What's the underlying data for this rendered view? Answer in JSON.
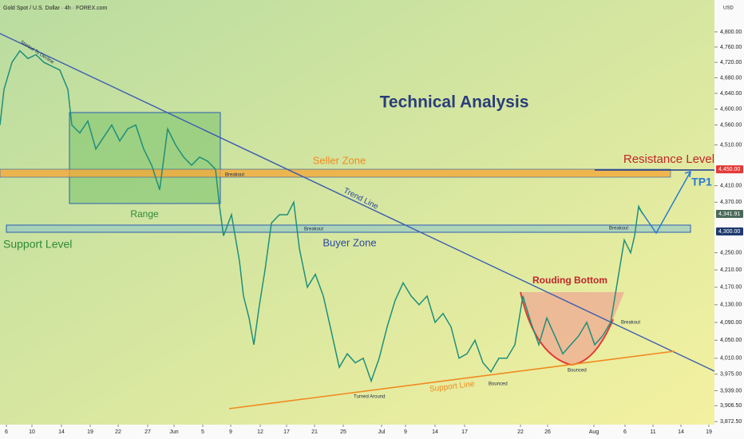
{
  "chart_data": {
    "type": "line",
    "title": "Technical Analysis",
    "subtitle": "Gold Spot / U.S. Dollar · 4h · FOREX.com",
    "currency": "USD",
    "log": true,
    "color": "#1f8f7a",
    "x": [
      0,
      1,
      3,
      5,
      7,
      9,
      11,
      13,
      15,
      17,
      18,
      20,
      22,
      24,
      26,
      28,
      30,
      32,
      34,
      36,
      38,
      40,
      42,
      44,
      46,
      48,
      50,
      52,
      54,
      55,
      56,
      58,
      60,
      61,
      62.4,
      63.6,
      65,
      66.4,
      68,
      70,
      72,
      73.6,
      75,
      77,
      79,
      81,
      83,
      85,
      87,
      89,
      91,
      93,
      95,
      97,
      99,
      101,
      103,
      105,
      107,
      109,
      111,
      113,
      115,
      117,
      119,
      121,
      123,
      125,
      127,
      129,
      131,
      133,
      135,
      137,
      139,
      141,
      143,
      145,
      147,
      149,
      151,
      153,
      155,
      156.4,
      158,
      159,
      160,
      161
    ],
    "values": [
      4560,
      4650,
      4720,
      4750,
      4730,
      4740,
      4720,
      4710,
      4700,
      4650,
      4560,
      4540,
      4570,
      4500,
      4530,
      4560,
      4520,
      4550,
      4560,
      4500,
      4460,
      4400,
      4550,
      4510,
      4480,
      4460,
      4480,
      4470,
      4450,
      4360,
      4290,
      4340,
      4230,
      4150,
      4100,
      4040,
      4130,
      4210,
      4320,
      4340,
      4340,
      4370,
      4260,
      4170,
      4200,
      4150,
      4070,
      3990,
      4020,
      4000,
      4010,
      3960,
      4010,
      4080,
      4140,
      4180,
      4150,
      4130,
      4150,
      4090,
      4110,
      4080,
      4010,
      4020,
      4050,
      4000,
      3980,
      4010,
      4010,
      4040,
      4150,
      4090,
      4040,
      4100,
      4060,
      4020,
      4040,
      4060,
      4090,
      4040,
      4060,
      4090,
      4200,
      4280,
      4250,
      4290,
      4360,
      4341.91
    ],
    "xlim": [
      0,
      179
    ],
    "xticks": [
      {
        "value": 1.6,
        "label": "6"
      },
      {
        "value": 8,
        "label": "10"
      },
      {
        "value": 15.4,
        "label": "14"
      },
      {
        "value": 22.6,
        "label": "19"
      },
      {
        "value": 29.6,
        "label": "22"
      },
      {
        "value": 37,
        "label": "27"
      },
      {
        "value": 43.6,
        "label": "Jun"
      },
      {
        "value": 50.8,
        "label": "5"
      },
      {
        "value": 57.8,
        "label": "9"
      },
      {
        "value": 65.2,
        "label": "12"
      },
      {
        "value": 71.8,
        "label": "17"
      },
      {
        "value": 78.8,
        "label": "21"
      },
      {
        "value": 86,
        "label": "25"
      },
      {
        "value": 95.6,
        "label": "Jul"
      },
      {
        "value": 101.6,
        "label": "9"
      },
      {
        "value": 109,
        "label": "14"
      },
      {
        "value": 116.4,
        "label": "17"
      },
      {
        "value": 130.4,
        "label": "22"
      },
      {
        "value": 137.2,
        "label": "26"
      },
      {
        "value": 148.8,
        "label": "Aug"
      },
      {
        "value": 156.6,
        "label": "6"
      },
      {
        "value": 163.6,
        "label": "11"
      },
      {
        "value": 170.6,
        "label": "14"
      },
      {
        "value": 177.6,
        "label": "19"
      }
    ],
    "ylim": [
      3866,
      4885
    ],
    "yticks": [
      {
        "value": 4800,
        "label": "4,800.00"
      },
      {
        "value": 4760,
        "label": "4,760.00"
      },
      {
        "value": 4720,
        "label": "4,720.00"
      },
      {
        "value": 4680,
        "label": "4,680.00"
      },
      {
        "value": 4640,
        "label": "4,640.00"
      },
      {
        "value": 4600,
        "label": "4,600.00"
      },
      {
        "value": 4560,
        "label": "4,560.00"
      },
      {
        "value": 4510,
        "label": "4,510.00"
      },
      {
        "value": 4410,
        "label": "4,410.00"
      },
      {
        "value": 4370,
        "label": "4,370.00"
      },
      {
        "value": 4250,
        "label": "4,250.00"
      },
      {
        "value": 4210,
        "label": "4,210.00"
      },
      {
        "value": 4170,
        "label": "4,170.00"
      },
      {
        "value": 4130,
        "label": "4,130.00"
      },
      {
        "value": 4090,
        "label": "4,090.00"
      },
      {
        "value": 4050,
        "label": "4,050.00"
      },
      {
        "value": 4010,
        "label": "4,010.00"
      },
      {
        "value": 3975,
        "label": "3,975.00"
      },
      {
        "value": 3939,
        "label": "3,939.00"
      },
      {
        "value": 3906.5,
        "label": "3,906.50"
      },
      {
        "value": 3872.5,
        "label": "3,872.50"
      }
    ],
    "price_labels": [
      {
        "value": 4450,
        "label": "4,450.00",
        "color": "#e53935"
      },
      {
        "value": 4341.91,
        "label": "4,341.91",
        "color": "#4a6a5a"
      },
      {
        "value": 4300,
        "label": "4,300.00",
        "color": "#1e3a6e"
      }
    ],
    "annotations": [
      "Seller Zone",
      "Range",
      "Trend Line",
      "Support Level",
      "Buyer Zone",
      "Resistance Level",
      "TP1",
      "Rouding Bottom",
      "Breakout",
      "Breakout",
      "Breakout",
      "Breakout",
      "Started To Decline",
      "Turned Around",
      "Bounced",
      "Bounced",
      "Support Line"
    ]
  }
}
